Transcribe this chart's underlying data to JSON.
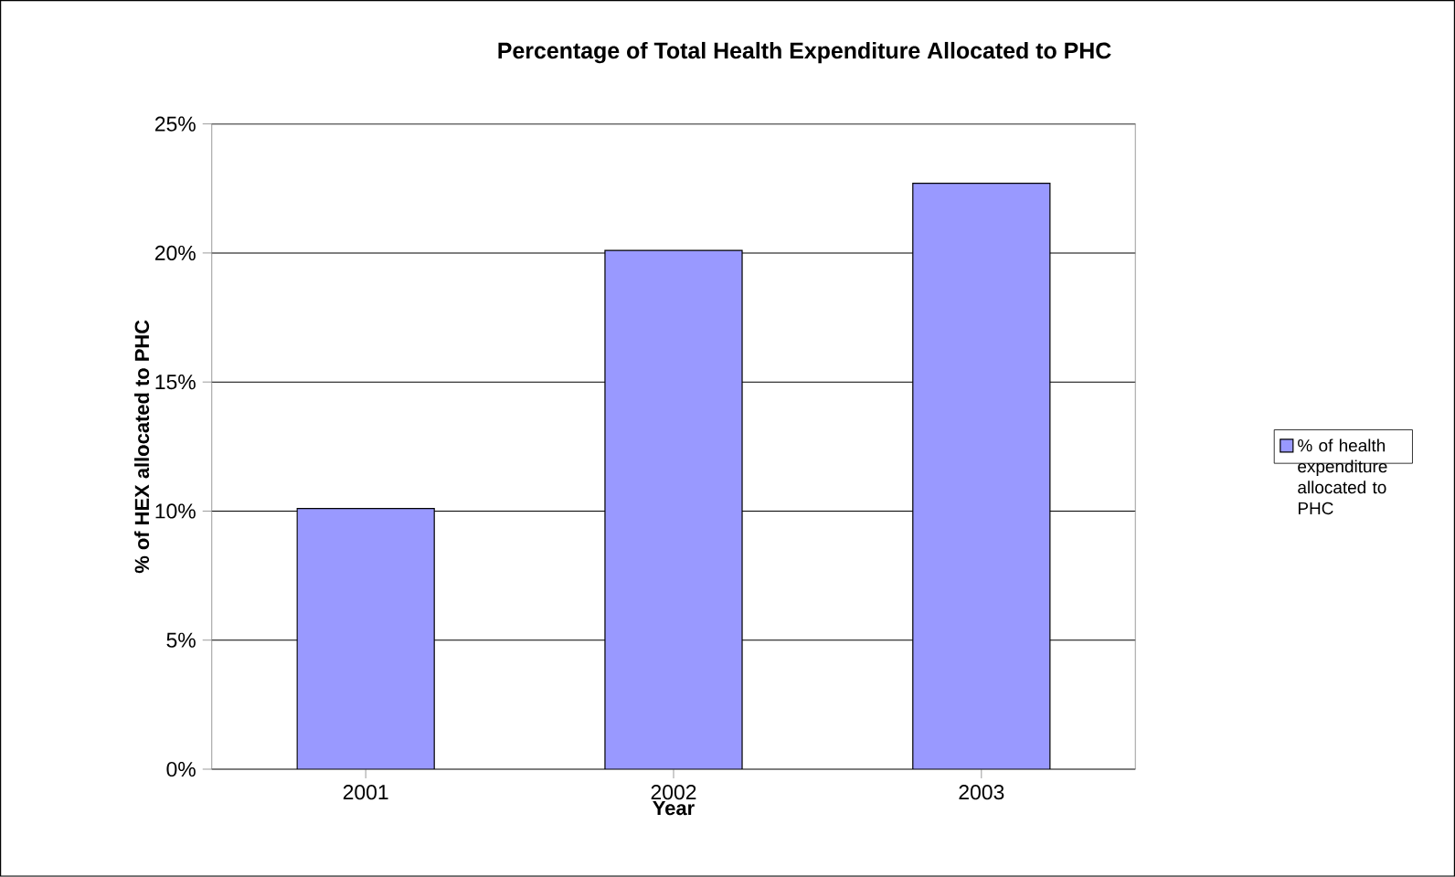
{
  "chart_data": {
    "type": "bar",
    "title": "Percentage of Total Health Expenditure Allocated to PHC",
    "xlabel": "Year",
    "ylabel": "% of HEX allocated to PHC",
    "categories": [
      "2001",
      "2002",
      "2003"
    ],
    "series": [
      {
        "name": "% of health expenditure allocated to PHC",
        "color": "#9999ff",
        "values": [
          10.1,
          20.1,
          22.7
        ]
      }
    ],
    "ylim": [
      0,
      25
    ],
    "yticks": [
      {
        "value": 0,
        "label": "0%"
      },
      {
        "value": 5,
        "label": "5%"
      },
      {
        "value": 10,
        "label": "10%"
      },
      {
        "value": 15,
        "label": "15%"
      },
      {
        "value": 20,
        "label": "20%"
      },
      {
        "value": 25,
        "label": "25%"
      }
    ],
    "grid": "y",
    "legend": "right"
  }
}
